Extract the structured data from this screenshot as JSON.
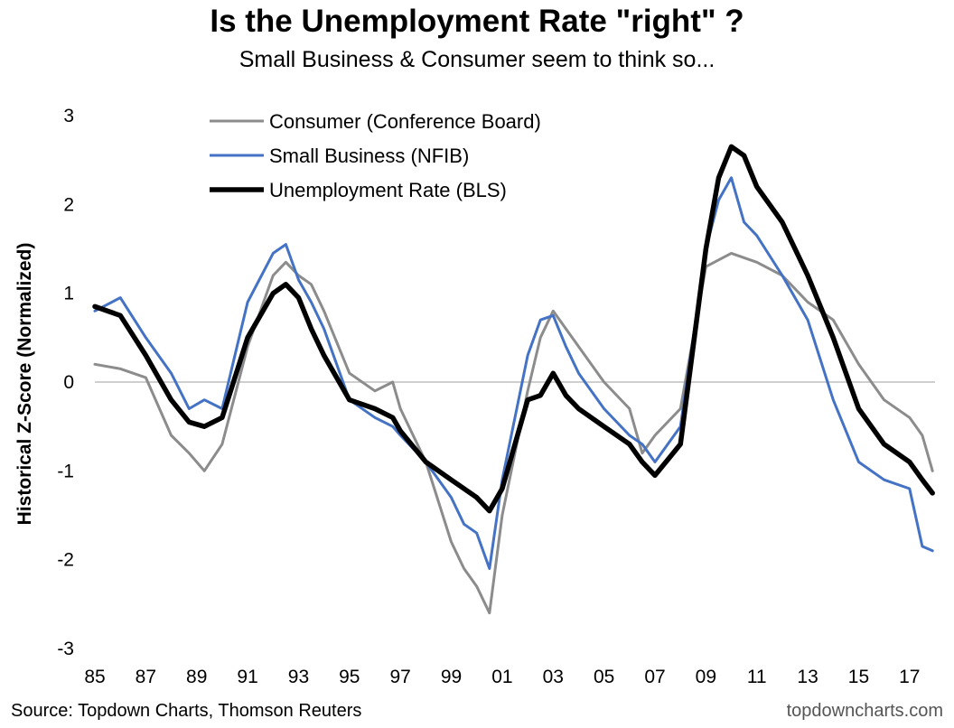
{
  "chart_data": {
    "type": "line",
    "title": "Is the Unemployment Rate \"right\" ?",
    "subtitle": "Small Business & Consumer seem to think so...",
    "ylabel": "Historical Z-Score  (Normalized)",
    "xlabel": "",
    "ylim": [
      -3,
      3
    ],
    "xlim": [
      1985,
      2018
    ],
    "yticks": [
      "3",
      "2",
      "1",
      "0",
      "-1",
      "-2",
      "-3"
    ],
    "xticks": [
      "85",
      "87",
      "89",
      "91",
      "93",
      "95",
      "97",
      "99",
      "01",
      "03",
      "05",
      "07",
      "09",
      "11",
      "13",
      "15",
      "17"
    ],
    "legend_position": "top-left",
    "grid": false,
    "zero_line": true,
    "series": [
      {
        "name": "Consumer (Conference Board)",
        "color": "#8c8c8c",
        "x": [
          1985,
          1986,
          1987,
          1988,
          1988.7,
          1989.3,
          1990,
          1991,
          1992,
          1992.5,
          1993,
          1993.5,
          1994,
          1995,
          1996,
          1996.7,
          1997,
          1998,
          1999,
          1999.5,
          2000,
          2000.5,
          2001,
          2002,
          2002.5,
          2003,
          2003.5,
          2004,
          2005,
          2006,
          2006.5,
          2007,
          2008,
          2009,
          2010,
          2011,
          2012,
          2013,
          2014,
          2015,
          2016,
          2017,
          2017.5,
          2017.9
        ],
        "y": [
          0.2,
          0.15,
          0.05,
          -0.6,
          -0.8,
          -1.0,
          -0.7,
          0.4,
          1.2,
          1.35,
          1.2,
          1.1,
          0.8,
          0.1,
          -0.1,
          0.0,
          -0.3,
          -0.9,
          -1.8,
          -2.1,
          -2.3,
          -2.6,
          -1.5,
          -0.1,
          0.5,
          0.8,
          0.6,
          0.4,
          0.0,
          -0.3,
          -0.8,
          -0.6,
          -0.3,
          1.3,
          1.45,
          1.35,
          1.2,
          0.9,
          0.7,
          0.2,
          -0.2,
          -0.4,
          -0.6,
          -1.0
        ]
      },
      {
        "name": "Small Business (NFIB)",
        "color": "#4472c4",
        "x": [
          1985,
          1986,
          1987,
          1988,
          1988.7,
          1989.3,
          1990,
          1991,
          1992,
          1992.5,
          1993,
          1993.5,
          1994,
          1995,
          1996,
          1996.7,
          1997,
          1998,
          1999,
          1999.5,
          2000,
          2000.5,
          2001,
          2002,
          2002.5,
          2003,
          2003.5,
          2004,
          2005,
          2006,
          2006.5,
          2007,
          2008,
          2009,
          2009.5,
          2010,
          2010.5,
          2011,
          2012,
          2013,
          2014,
          2015,
          2016,
          2017,
          2017.5,
          2017.9
        ],
        "y": [
          0.8,
          0.95,
          0.5,
          0.1,
          -0.3,
          -0.2,
          -0.3,
          0.9,
          1.45,
          1.55,
          1.15,
          0.9,
          0.6,
          -0.2,
          -0.4,
          -0.5,
          -0.6,
          -0.9,
          -1.3,
          -1.6,
          -1.7,
          -2.1,
          -1.1,
          0.3,
          0.7,
          0.75,
          0.4,
          0.1,
          -0.3,
          -0.6,
          -0.7,
          -0.9,
          -0.5,
          1.5,
          2.05,
          2.3,
          1.8,
          1.65,
          1.2,
          0.7,
          -0.2,
          -0.9,
          -1.1,
          -1.2,
          -1.85,
          -1.9
        ]
      },
      {
        "name": "Unemployment Rate (BLS)",
        "color": "#000000",
        "x": [
          1985,
          1986,
          1987,
          1988,
          1988.7,
          1989.3,
          1990,
          1991,
          1992,
          1992.5,
          1993,
          1993.5,
          1994,
          1995,
          1996,
          1996.7,
          1997,
          1998,
          1999,
          1999.5,
          2000,
          2000.5,
          2001,
          2002,
          2002.5,
          2003,
          2003.5,
          2004,
          2005,
          2006,
          2006.5,
          2007,
          2008,
          2009,
          2009.5,
          2010,
          2010.5,
          2011,
          2012,
          2013,
          2014,
          2015,
          2016,
          2017,
          2017.5,
          2017.9
        ],
        "y": [
          0.85,
          0.75,
          0.3,
          -0.2,
          -0.45,
          -0.5,
          -0.4,
          0.5,
          1.0,
          1.1,
          0.95,
          0.6,
          0.3,
          -0.2,
          -0.3,
          -0.4,
          -0.55,
          -0.9,
          -1.1,
          -1.2,
          -1.3,
          -1.45,
          -1.2,
          -0.2,
          -0.15,
          0.1,
          -0.15,
          -0.3,
          -0.5,
          -0.7,
          -0.9,
          -1.05,
          -0.7,
          1.5,
          2.3,
          2.65,
          2.55,
          2.2,
          1.8,
          1.2,
          0.5,
          -0.3,
          -0.7,
          -0.9,
          -1.1,
          -1.25
        ]
      }
    ]
  },
  "footer": {
    "source": "Source: Topdown Charts, Thomson Reuters",
    "credit": "topdowncharts.com"
  }
}
